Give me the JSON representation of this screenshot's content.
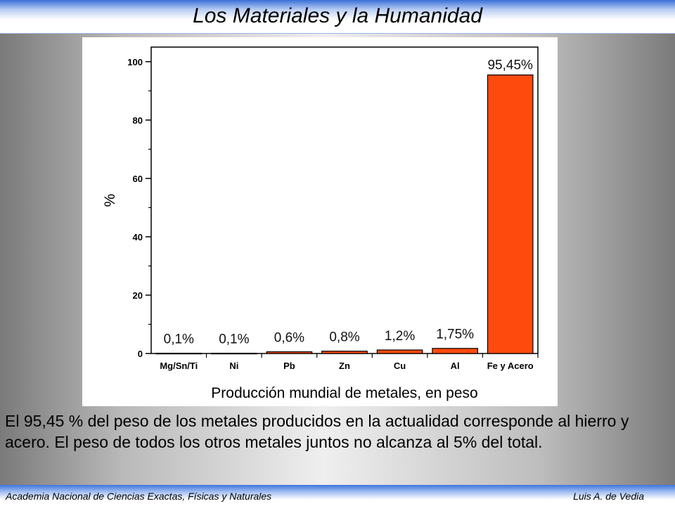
{
  "slide": {
    "title": "Los Materiales y la Humanidad",
    "caption": "El 95,45 % del peso de los metales producidos en la actualidad corresponde al hierro y acero. El peso de todos los otros metales juntos no alcanza al 5% del total.",
    "footer_left": "Academia Nacional de Ciencias Exactas, Físicas y Naturales",
    "footer_right": "Luis A. de Vedia"
  },
  "colors": {
    "bar_fill": "#ff4a0d",
    "bar_stroke": "#000000"
  },
  "chart_data": {
    "type": "bar",
    "title": "",
    "xlabel": "Producción mundial de metales, en peso",
    "ylabel": "%",
    "ylim": [
      0,
      105
    ],
    "yticks": [
      0,
      20,
      40,
      60,
      80,
      100
    ],
    "categories": [
      "Mg/Sn/Ti",
      "Ni",
      "Pb",
      "Zn",
      "Cu",
      "Al",
      "Fe y Acero"
    ],
    "values": [
      0.1,
      0.1,
      0.6,
      0.8,
      1.2,
      1.75,
      95.45
    ],
    "data_labels": [
      "0,1%",
      "0,1%",
      "0,6%",
      "0,8%",
      "1,2%",
      "1,75%",
      "95,45%"
    ],
    "grid": false,
    "legend": "none"
  }
}
